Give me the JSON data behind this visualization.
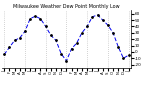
{
  "title": "Milwaukee Weather Dew Point Monthly Low",
  "line_color": "#0000EE",
  "marker_color": "#000000",
  "background_color": "#ffffff",
  "plot_bg_color": "#ffffff",
  "grid_color": "#aaaaaa",
  "ylim": [
    -25,
    65
  ],
  "yticks": [
    -20,
    -10,
    0,
    10,
    20,
    30,
    40,
    50,
    60
  ],
  "ytick_labels": [
    "-20",
    "-10",
    "0",
    "10",
    "20",
    "30",
    "40",
    "50",
    "60"
  ],
  "values": [
    -4,
    7,
    18,
    22,
    32,
    52,
    56,
    52,
    40,
    26,
    18,
    -3,
    -14,
    5,
    14,
    30,
    40,
    55,
    58,
    50,
    42,
    30,
    8,
    -10,
    -5
  ],
  "xlabels": [
    "J",
    "F",
    "M",
    "A",
    "M",
    "J",
    "J",
    "A",
    "S",
    "O",
    "N",
    "D",
    "J",
    "F",
    "M",
    "A",
    "M",
    "J",
    "J",
    "A",
    "S",
    "O",
    "N",
    "D",
    "J"
  ],
  "grid_positions": [
    0,
    4,
    8,
    12,
    16,
    20,
    24
  ]
}
